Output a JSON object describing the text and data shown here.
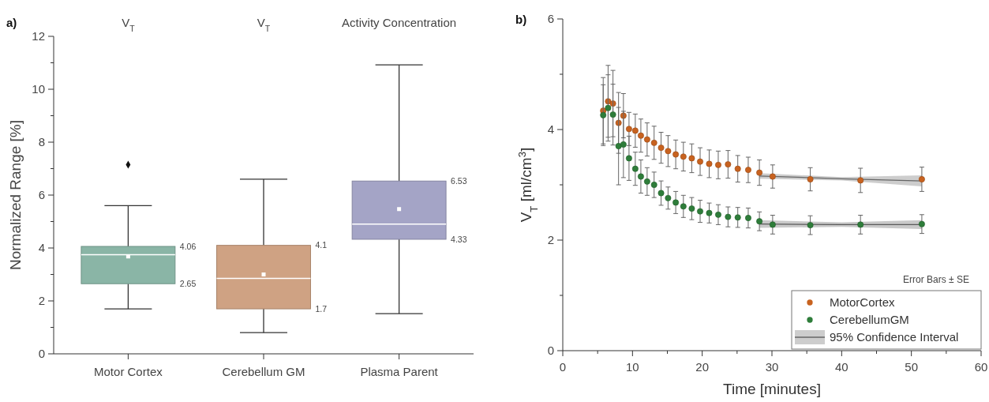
{
  "chart_data": [
    {
      "type": "box",
      "title": "a)",
      "ylabel": "Normalized Range [%]",
      "categories": [
        "Motor Cortex",
        "Cerebellum GM",
        "Plasma Parent"
      ],
      "colors": [
        "#8ab5a6",
        "#cfa283",
        "#a4a4c6"
      ],
      "boxes": [
        {
          "low": 1.7,
          "q1": 2.65,
          "median": 3.75,
          "q3": 4.06,
          "high": 5.6,
          "mean": 3.68,
          "outliers": [
            7.15
          ]
        },
        {
          "low": 0.8,
          "q1": 1.7,
          "median": 2.85,
          "q3": 4.1,
          "high": 6.6,
          "mean": 3.0
        },
        {
          "low": 1.52,
          "q1": 4.33,
          "median": 4.9,
          "q3": 6.53,
          "high": 10.92,
          "mean": 5.47
        }
      ],
      "ylim": [
        0,
        12
      ],
      "yticks": [
        0,
        {
          "value": 1,
          "label": null
        },
        2,
        {
          "value": 3,
          "label": null
        },
        4,
        {
          "value": 5,
          "label": null
        },
        6,
        {
          "value": 7,
          "label": null
        },
        8,
        {
          "value": 9,
          "label": null
        },
        10,
        {
          "value": 11,
          "label": null
        },
        12
      ],
      "annotations": [
        "V$_{T}$",
        "V$_{T}$",
        "Activity Concentration",
        "4.06",
        "2.65",
        "4.1",
        "1.7",
        "6.53",
        "4.33"
      ],
      "grid": false,
      "legend": false
    },
    {
      "type": "scatter",
      "title": "b)",
      "xlabel": "Time [minutes]",
      "ylabel": "V$_{T}$ [ml/cm$^{3}$]",
      "xlim": [
        0,
        60
      ],
      "xticks": [
        0,
        10,
        20,
        30,
        40,
        50,
        60
      ],
      "ylim": [
        0,
        6
      ],
      "yticks": [
        0,
        {
          "value": 1,
          "label": null
        },
        2,
        {
          "value": 3,
          "label": null
        },
        4,
        {
          "value": 5,
          "label": null
        },
        6
      ],
      "marker": "circle",
      "legend": "bottom right",
      "grid": false,
      "annotations": [
        "Error Bars ± SE"
      ],
      "series": [
        {
          "type": "line",
          "marker": "none",
          "name": "95% Confidence Interval",
          "color": "#666666",
          "x": [
            28.2,
            40,
            51.5
          ],
          "values": [
            3.16,
            3.11,
            3.07
          ],
          "lower": [
            3.11,
            3.08,
            2.97
          ],
          "upper": [
            3.21,
            3.14,
            3.17
          ]
        },
        {
          "type": "line",
          "marker": "none",
          "color": "#5a5a5a",
          "x": [
            28.2,
            40,
            51.5
          ],
          "values": [
            2.29,
            2.28,
            2.28
          ],
          "lower": [
            2.22,
            2.24,
            2.2
          ],
          "upper": [
            2.36,
            2.32,
            2.36
          ]
        },
        {
          "name": "MotorCortex",
          "color": "#c8621f",
          "x": [
            5.8,
            6.5,
            7.2,
            8.0,
            8.7,
            9.5,
            10.4,
            11.2,
            12.1,
            13.1,
            14.1,
            15.1,
            16.2,
            17.3,
            18.5,
            19.7,
            21.0,
            22.3,
            23.7,
            25.1,
            26.6,
            28.2,
            30.1,
            35.5,
            42.7,
            51.5
          ],
          "values": [
            4.34,
            4.51,
            4.47,
            4.12,
            4.25,
            4.01,
            3.98,
            3.89,
            3.82,
            3.76,
            3.67,
            3.61,
            3.55,
            3.51,
            3.48,
            3.42,
            3.38,
            3.36,
            3.37,
            3.29,
            3.27,
            3.22,
            3.15,
            3.1,
            3.08,
            3.1
          ],
          "errors": [
            0.6,
            0.65,
            0.6,
            0.55,
            0.4,
            0.3,
            0.3,
            0.3,
            0.3,
            0.3,
            0.28,
            0.28,
            0.26,
            0.26,
            0.26,
            0.25,
            0.25,
            0.25,
            0.25,
            0.24,
            0.23,
            0.23,
            0.21,
            0.21,
            0.22,
            0.22
          ]
        },
        {
          "name": "CerebellumGM",
          "color": "#2e7d3a",
          "x": [
            5.8,
            6.5,
            7.2,
            8.0,
            8.7,
            9.5,
            10.4,
            11.2,
            12.1,
            13.1,
            14.1,
            15.1,
            16.2,
            17.3,
            18.5,
            19.7,
            21.0,
            22.3,
            23.7,
            25.1,
            26.6,
            28.2,
            30.1,
            35.5,
            42.7,
            51.5
          ],
          "values": [
            4.26,
            4.39,
            4.27,
            3.7,
            3.73,
            3.48,
            3.29,
            3.15,
            3.06,
            3.0,
            2.85,
            2.76,
            2.68,
            2.61,
            2.57,
            2.52,
            2.49,
            2.46,
            2.42,
            2.41,
            2.4,
            2.34,
            2.28,
            2.27,
            2.28,
            2.29
          ],
          "errors": [
            0.55,
            0.6,
            0.55,
            0.7,
            0.6,
            0.4,
            0.3,
            0.3,
            0.25,
            0.23,
            0.22,
            0.2,
            0.2,
            0.2,
            0.2,
            0.2,
            0.18,
            0.18,
            0.18,
            0.18,
            0.18,
            0.17,
            0.17,
            0.17,
            0.17,
            0.17
          ]
        }
      ]
    }
  ]
}
